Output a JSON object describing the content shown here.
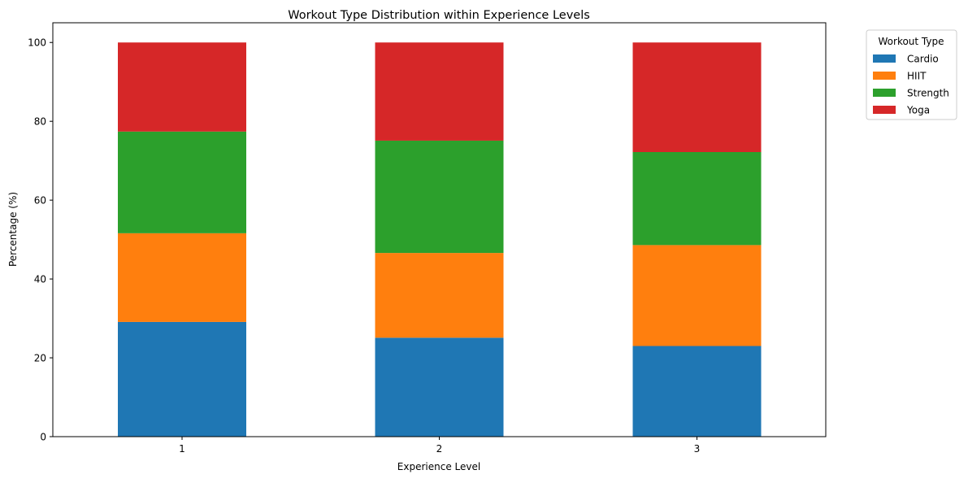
{
  "chart_data": {
    "type": "bar",
    "stacked": true,
    "title": "Workout Type Distribution within Experience Levels",
    "xlabel": "Experience Level",
    "ylabel": "Percentage (%)",
    "categories": [
      "1",
      "2",
      "3"
    ],
    "ylim": [
      0,
      105
    ],
    "yticks": [
      0,
      20,
      40,
      60,
      80,
      100
    ],
    "grid": false,
    "legend": {
      "title": "Workout Type",
      "placement": "outside-top-right"
    },
    "series": [
      {
        "name": "Cardio",
        "color": "#1f77b4",
        "values": [
          29.1,
          25.1,
          23.0
        ]
      },
      {
        "name": "HIIT",
        "color": "#ff7f0e",
        "values": [
          22.5,
          21.5,
          25.6
        ]
      },
      {
        "name": "Strength",
        "color": "#2ca02c",
        "values": [
          25.8,
          28.5,
          23.6
        ]
      },
      {
        "name": "Yoga",
        "color": "#d62728",
        "values": [
          22.6,
          24.9,
          27.8
        ]
      }
    ]
  }
}
